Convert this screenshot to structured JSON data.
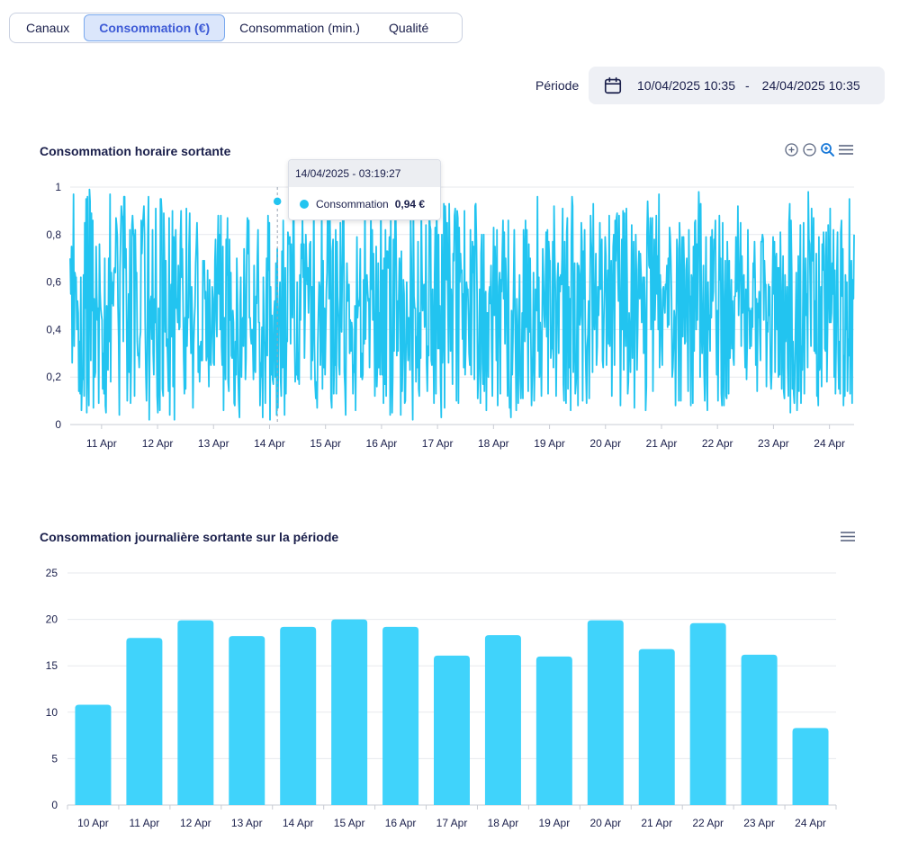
{
  "tabs": [
    {
      "label": "Canaux",
      "active": false
    },
    {
      "label": "Consommation (€)",
      "active": true
    },
    {
      "label": "Consommation (min.)",
      "active": false
    },
    {
      "label": "Qualité",
      "active": false
    }
  ],
  "period": {
    "label": "Période",
    "start": "10/04/2025 10:35",
    "separator": "-",
    "end": "24/04/2025 10:35",
    "icon": "calendar-icon"
  },
  "colors": {
    "accent": "#22c4f0",
    "bar": "#40d3fb",
    "text": "#1a1f4b"
  },
  "hourly": {
    "toolbox_icons": [
      "zoom-in-icon",
      "zoom-out-icon",
      "zoom-reset-icon",
      "menu-icon"
    ],
    "tooltip": {
      "title": "14/04/2025 - 03:19:27",
      "series": "Consommation",
      "value": "0,94 €"
    }
  },
  "daily": {
    "toolbox_icons": [
      "menu-icon"
    ]
  },
  "chart_data": [
    {
      "type": "line",
      "title": "Consommation horaire sortante",
      "series": [
        {
          "name": "Consommation"
        }
      ],
      "x_ticks": [
        "11 Apr",
        "12 Apr",
        "13 Apr",
        "14 Apr",
        "15 Apr",
        "16 Apr",
        "17 Apr",
        "18 Apr",
        "19 Apr",
        "20 Apr",
        "21 Apr",
        "22 Apr",
        "23 Apr",
        "24 Apr"
      ],
      "y_ticks": [
        "0",
        "0,2",
        "0,4",
        "0,6",
        "0,8",
        "1"
      ],
      "ylim": [
        0,
        1
      ],
      "xrange_days": [
        10.44,
        24.44
      ],
      "highlight": {
        "day": 14.14,
        "value": 0.94
      },
      "values": [
        0.7,
        0.55,
        0.75,
        0.26,
        0.54,
        0.97,
        0.33,
        0.64,
        0.62,
        0.62,
        0.4,
        0.52,
        0.47,
        0.14,
        0.35,
        0.13,
        0.62,
        0.06,
        0.2,
        0.19,
        0.63,
        0.12,
        0.85,
        0.49,
        0.95,
        0.05,
        0.96,
        0.28,
        0.08,
        0.99,
        0.94,
        0.27,
        0.89,
        0.48,
        0.86,
        0.07,
        0.53,
        0.2,
        0.22,
        0.75,
        0.55,
        0.44,
        0.49,
        0.09,
        0.76,
        0.56,
        0.49,
        0.46,
        0.44,
        0.15,
        0.3,
        0.13,
        0.7,
        0.08,
        0.05,
        0.5,
        0.28,
        0.23,
        0.7,
        0.35,
        0.97,
        0.18,
        0.64,
        0.51,
        0.6,
        0.5,
        0.65,
        0.66,
        0.64,
        0.87,
        0.84,
        0.79,
        0.5,
        0.37,
        0.04,
        0.64,
        0.8,
        0.92,
        0.88,
        0.87,
        0.35,
        0.96,
        0.96,
        0.66,
        0.74,
        0.43,
        0.1,
        0.34,
        0.55,
        0.22,
        0.82,
        0.09,
        0.29,
        0.84,
        0.88,
        0.81,
        0.79,
        0.12,
        0.82,
        0.62,
        0.64,
        0.35,
        0.29,
        0.3,
        0.24,
        0.36,
        0.39,
        0.86,
        0.72,
        0.83,
        0.87,
        0.92,
        0.8,
        0.43,
        0.21,
        0.1,
        0.3,
        0.8,
        0.96,
        0.02,
        0.36,
        0.52,
        0.54,
        0.36,
        0.82,
        0.3,
        0.21,
        0.53,
        0.43,
        0.91,
        0.4,
        0.12,
        0.05,
        0.49,
        0.25,
        0.06,
        0.95,
        0.95,
        0.89,
        0.15,
        0.12,
        0.89,
        0.72,
        0.39,
        0.69,
        0.33,
        0.36,
        0.26,
        0.14,
        0.87,
        0.04,
        0.45,
        0.59,
        0.37,
        0.9,
        0.16,
        0.79,
        0.02,
        0.71,
        0.82,
        0.49,
        0.53,
        0.43,
        0.67,
        0.4,
        0.41,
        0.78,
        0.9,
        0.62,
        0.74,
        0.51,
        0.28,
        0.13,
        0.45,
        0.15,
        0.91,
        0.33,
        0.47,
        0.45,
        0.75,
        0.89,
        0.45,
        0.3,
        0.58,
        0.43,
        0.07,
        0.34,
        0.43,
        0.5,
        0.68,
        0.75,
        0.85,
        0.72,
        0.22,
        0.33,
        0.18,
        0.32,
        0.35,
        0.27,
        0.27,
        0.69,
        0.64,
        0.69,
        0.53,
        0.56,
        0.27,
        0.29,
        0.65,
        0.32,
        0.16,
        0.61,
        0.28,
        0.25,
        0.37,
        0.58,
        0.53,
        0.26,
        0.25,
        0.69,
        0.78,
        0.44,
        0.37,
        0.71,
        0.88,
        0.55,
        0.8,
        0.4,
        0.88,
        0.33,
        0.25,
        0.75,
        0.06,
        0.45,
        0.39,
        0.19,
        0.78,
        0.63,
        0.87,
        0.18,
        0.14,
        0.78,
        0.44,
        0.64,
        0.29,
        0.28,
        0.48,
        0.43,
        0.09,
        0.08,
        0.35,
        0.21,
        0.7,
        0.53,
        0.21,
        0.1,
        0.03,
        0.5,
        0.62,
        0.2,
        0.42,
        0.45,
        0.33,
        0.74,
        0.57,
        0.19,
        0.28,
        0.72,
        0.87,
        0.72,
        0.86,
        0.45,
        0.45,
        0.37,
        0.34,
        0.4,
        0.35,
        0.19,
        0.67,
        0.24,
        0.22,
        0.54,
        0.51,
        0.71,
        0.82,
        0.43,
        0.43,
        0.08,
        0.26,
        0.2,
        0.41,
        0.03,
        0.62,
        0.35,
        0.34,
        0.09,
        0.51,
        0.7,
        0.29,
        0.88,
        0.65,
        0.85,
        0.02,
        0.58,
        0.21,
        0.46,
        0.19,
        0.17,
        0.46,
        0.52,
        0.2,
        0.68,
        0.04,
        0.74,
        0.07,
        0.42,
        0.5,
        0.6,
        0.19,
        0.12,
        0.73,
        0.24,
        0.86,
        0.33,
        0.04,
        0.66,
        0.13,
        0.36,
        0.35,
        0.81,
        0.78,
        0.76,
        0.79,
        0.34,
        0.76,
        0.51,
        0.45,
        0.88,
        0.87,
        0.37,
        0.18,
        0.24,
        0.21,
        0.6,
        0.19,
        0.3,
        0.17,
        0.63,
        0.44,
        0.76,
        0.7,
        0.87,
        0.62,
        0.76,
        0.28,
        0.5,
        0.8,
        0.68,
        0.59,
        0.66,
        0.47,
        0.6,
        0.76,
        0.77,
        0.19,
        0.58,
        0.27,
        0.44,
        0.95,
        0.34,
        0.17,
        0.11,
        0.18,
        0.07,
        0.34,
        0.47,
        0.6,
        0.58,
        0.25,
        0.39,
        0.93,
        0.15,
        0.69,
        0.24,
        0.49,
        0.21,
        0.38,
        0.57,
        0.64,
        0.96,
        0.91,
        0.53,
        0.91,
        0.73,
        0.11,
        0.07,
        0.73,
        0.78,
        0.13,
        0.27,
        0.25,
        0.82,
        0.13,
        0.77,
        0.54,
        0.45,
        0.25,
        0.21,
        0.85,
        0.48,
        0.39,
        0.68,
        0.97,
        0.91,
        0.22,
        0.16,
        0.04,
        0.47,
        0.68,
        0.52,
        0.53,
        0.59,
        0.3,
        0.44,
        0.31,
        0.43,
        0.4,
        0.13,
        0.25,
        0.22,
        0.5,
        0.06,
        0.42,
        0.79,
        0.45,
        0.52,
        0.5,
        0.54,
        0.74,
        0.2,
        0.3,
        0.19,
        0.21,
        0.61,
        0.34,
        0.94,
        0.36,
        0.58,
        0.63,
        0.57,
        0.52,
        0.53,
        0.24,
        0.53,
        0.89,
        0.57,
        0.82,
        0.44,
        0.72,
        0.45,
        0.12,
        0.31,
        0.75,
        0.16,
        0.26,
        0.68,
        0.24,
        0.47,
        0.21,
        0.95,
        0.45,
        0.21,
        0.65,
        0.09,
        0.7,
        0.17,
        0.82,
        0.12,
        0.73,
        0.73,
        0.66,
        0.66,
        0.79,
        0.04,
        0.89,
        0.24,
        0.05,
        0.2,
        0.78,
        0.31,
        0.76,
        0.97,
        0.78,
        0.29,
        0.52,
        0.31,
        0.54,
        0.7,
        0.66,
        0.04,
        0.73,
        0.14,
        0.28,
        0.61,
        0.55,
        0.09,
        0.1,
        0.36,
        0.6,
        0.38,
        0.27,
        0.45,
        0.37,
        0.23,
        0.88,
        0.69,
        0.3,
        0.02,
        0.94,
        0.54,
        0.49,
        0.49,
        0.18,
        0.37,
        0.24,
        0.77,
        0.15,
        0.12,
        0.47,
        0.28,
        0.91,
        0.64,
        0.48,
        0.57,
        0.59,
        0.41,
        0.44,
        0.84,
        0.26,
        0.14,
        0.33,
        0.29,
        0.9,
        0.84,
        0.82,
        0.27,
        0.25,
        0.57,
        0.35,
        0.09,
        0.63,
        0.83,
        0.13,
        0.93,
        0.73,
        0.32,
        0.8,
        0.32,
        0.5,
        0.18,
        0.03,
        0.8,
        0.26,
        0.41,
        0.93,
        0.07,
        0.92,
        0.81,
        0.61,
        0.85,
        0.55,
        0.26,
        0.93,
        0.63,
        0.31,
        0.57,
        0.44,
        0.17,
        0.72,
        0.69,
        0.88,
        0.91,
        0.77,
        0.1,
        0.9,
        0.87,
        0.09,
        0.83,
        0.6,
        0.72,
        0.64,
        0.65,
        0.36,
        0.55,
        0.24,
        0.9,
        0.21,
        0.34,
        0.6,
        0.57,
        0.57,
        0.46,
        0.3,
        0.25,
        0.82,
        0.21,
        0.54,
        0.77,
        0.64,
        0.75,
        0.19,
        0.92,
        0.93,
        0.77,
        0.55,
        0.11,
        0.21,
        0.34,
        0.57,
        0.09,
        0.72,
        0.8,
        0.26,
        0.17,
        0.8,
        0.14,
        0.51,
        0.56,
        0.06,
        0.47,
        0.47,
        0.2,
        0.55,
        0.58,
        0.51,
        0.67,
        0.32,
        0.12,
        0.59,
        0.83,
        0.46,
        0.75,
        0.61,
        0.27,
        0.82,
        0.08,
        0.35,
        0.58,
        0.64,
        0.13,
        0.61,
        0.56,
        0.72,
        0.86,
        0.53,
        0.81,
        0.34,
        0.7,
        0.6,
        0.35,
        0.12,
        0.86,
        0.23,
        0.07,
        0.11,
        0.03,
        0.48,
        0.21,
        0.35,
        0.6,
        0.82,
        0.52,
        0.29,
        0.06,
        0.53,
        0.34,
        0.09,
        0.43,
        0.63,
        0.2,
        0.11,
        0.23,
        0.47,
        0.11,
        0.82,
        0.71,
        0.35,
        0.86,
        0.41,
        0.82,
        0.47,
        0.14,
        0.76,
        0.39,
        0.7,
        0.39,
        0.08,
        0.19,
        0.29,
        0.64,
        0.1,
        0.26,
        0.57,
        0.49,
        0.48,
        0.96,
        0.31,
        0.62,
        0.2,
        0.43,
        0.33,
        0.12,
        0.44,
        0.74,
        0.63,
        0.46,
        0.41,
        0.59,
        0.81,
        0.37,
        0.82,
        0.13,
        0.77,
        0.69,
        0.69,
        0.28,
        0.32,
        0.32,
        0.77,
        0.24,
        0.92,
        0.7,
        0.57,
        0.12,
        0.37,
        0.61,
        0.68,
        0.3,
        0.62,
        0.56,
        0.63,
        0.59,
        0.7,
        0.91,
        0.17,
        0.1,
        0.77,
        0.45,
        0.09,
        0.81,
        0.87,
        0.15,
        0.58,
        0.24,
        0.53,
        0.06,
        0.77,
        0.96,
        0.92,
        0.22,
        0.38,
        0.68,
        0.13,
        0.17,
        0.24,
        0.68,
        0.08,
        0.67,
        0.63,
        0.42,
        0.46,
        0.85,
        0.77,
        0.1,
        0.73,
        0.53,
        0.82,
        0.39,
        0.23,
        0.09,
        0.33,
        0.38,
        0.52,
        0.11,
        0.55,
        0.88,
        0.77,
        0.7,
        0.22,
        0.93,
        0.46,
        0.4,
        0.56,
        0.72,
        0.25,
        0.33,
        0.58,
        0.46,
        0.57,
        0.85,
        0.57,
        0.66,
        0.78,
        0.27,
        0.24,
        0.45,
        0.58,
        0.79,
        0.71,
        0.25,
        0.52,
        0.65,
        0.34,
        0.88,
        0.33,
        0.54,
        0.69,
        0.12,
        0.45,
        0.75,
        0.8,
        0.25,
        0.86,
        0.69,
        0.87,
        0.89,
        0.67,
        0.52,
        0.88,
        0.53,
        0.08,
        0.41,
        0.78,
        0.4,
        0.9,
        0.23,
        0.89,
        0.45,
        0.33,
        0.91,
        0.62,
        0.13,
        0.18,
        0.47,
        0.39,
        0.22,
        0.46,
        0.84,
        0.28,
        0.59,
        0.77,
        0.07,
        0.42,
        0.8,
        0.65,
        0.23,
        0.41,
        0.65,
        0.73,
        0.53,
        0.72,
        0.63,
        0.43,
        0.53,
        0.62,
        0.3,
        0.62,
        0.49,
        0.06,
        0.16,
        0.8,
        0.94,
        0.82,
        0.67,
        0.66,
        0.87,
        0.4,
        0.79,
        0.87,
        0.14,
        0.55,
        0.78,
        0.44,
        0.59,
        0.88,
        0.55,
        0.71,
        0.4,
        0.97,
        0.24,
        0.63,
        0.52,
        0.33,
        0.25,
        0.57,
        0.58,
        0.51,
        0.47,
        0.59,
        0.57,
        0.67,
        0.41,
        0.7,
        0.42,
        0.83,
        0.79,
        0.69,
        0.52,
        0.2,
        0.24,
        0.33,
        0.48,
        0.44,
        0.08,
        0.37,
        0.78,
        0.74,
        0.44,
        0.1,
        0.85,
        0.74,
        0.1,
        0.5,
        0.79,
        0.37,
        0.79,
        0.67,
        0.34,
        0.35,
        0.65,
        0.7,
        0.4,
        0.14,
        0.82,
        0.52,
        0.54,
        0.08,
        0.63,
        0.6,
        0.09,
        0.75,
        0.31,
        0.85,
        0.86,
        0.4,
        0.76,
        0.44,
        0.77,
        0.98,
        0.86,
        0.2,
        0.93,
        0.43,
        0.3,
        0.42,
        0.67,
        0.23,
        0.1,
        0.54,
        0.79,
        0.17,
        0.06,
        0.6,
        0.4,
        0.46,
        0.31,
        0.79,
        0.45,
        0.82,
        0.52,
        0.56,
        0.78,
        0.74,
        0.86,
        0.45,
        0.21,
        0.48,
        0.1,
        0.45,
        0.88,
        0.61,
        0.7,
        0.13,
        0.08,
        0.85,
        0.26,
        0.08,
        0.54,
        0.69,
        0.12,
        0.11,
        0.77,
        0.58,
        0.13,
        0.69,
        0.28,
        0.41,
        0.61,
        0.32,
        0.52,
        0.28,
        0.25,
        0.54,
        0.54,
        0.79,
        0.56,
        0.6,
        0.92,
        0.46,
        0.6,
        0.67,
        0.85,
        0.33,
        0.71,
        0.47,
        0.59,
        0.63,
        0.37,
        0.24,
        0.57,
        0.19,
        0.35,
        0.82,
        0.48,
        0.49,
        0.32,
        0.48,
        0.33,
        0.49,
        0.41,
        0.68,
        0.62,
        0.77,
        0.6,
        0.25,
        0.53,
        0.14,
        0.51,
        0.45,
        0.56,
        0.38,
        0.27,
        0.77,
        0.77,
        0.8,
        0.78,
        0.44,
        0.69,
        0.58,
        0.59,
        0.16,
        0.43,
        0.39,
        0.59,
        0.46,
        0.58,
        0.22,
        0.15,
        0.22,
        0.6,
        0.79,
        0.55,
        0.77,
        0.22,
        0.69,
        0.72,
        0.4,
        0.66,
        0.2,
        0.66,
        0.21,
        0.81,
        0.58,
        0.15,
        0.38,
        0.71,
        0.14,
        0.11,
        0.63,
        0.35,
        0.44,
        0.58,
        0.24,
        0.12,
        0.85,
        0.93,
        0.05,
        0.86,
        0.65,
        0.15,
        0.35,
        0.13,
        0.09,
        0.28,
        0.47,
        0.64,
        0.06,
        0.21,
        0.71,
        0.14,
        0.52,
        0.84,
        0.09,
        0.33,
        0.23,
        0.55,
        0.85,
        0.13,
        0.52,
        0.7,
        0.46,
        0.55,
        0.24,
        0.98,
        0.78,
        0.76,
        0.57,
        0.33,
        0.91,
        0.69,
        0.69,
        0.87,
        0.31,
        0.52,
        0.3,
        0.72,
        0.12,
        0.18,
        0.08,
        0.79,
        0.23,
        0.25,
        0.58,
        0.16,
        0.76,
        0.65,
        0.81,
        0.71,
        0.32,
        0.31,
        0.81,
        0.18,
        0.39,
        0.84,
        0.6,
        0.43,
        0.91,
        0.43,
        0.47,
        0.68,
        0.55,
        0.82,
        0.2,
        0.65,
        0.13,
        0.34,
        0.64,
        0.81,
        0.3,
        0.15,
        0.35,
        0.13,
        0.81,
        0.86,
        0.54,
        0.74,
        0.08,
        0.29,
        0.12,
        0.63,
        0.4,
        0.6,
        0.14,
        0.36,
        0.29,
        0.95,
        0.13,
        0.57,
        0.69,
        0.09,
        0.61,
        0.53,
        0.8
      ]
    },
    {
      "type": "bar",
      "title": "Consommation journalière sortante sur la période",
      "categories": [
        "10 Apr",
        "11 Apr",
        "12 Apr",
        "13 Apr",
        "14 Apr",
        "15 Apr",
        "16 Apr",
        "17 Apr",
        "18 Apr",
        "19 Apr",
        "20 Apr",
        "21 Apr",
        "22 Apr",
        "23 Apr",
        "24 Apr"
      ],
      "values": [
        10.8,
        18,
        19.9,
        18.2,
        19.2,
        20,
        19.2,
        16.1,
        18.3,
        16,
        19.9,
        16.8,
        19.6,
        16.2,
        8.3
      ],
      "y_ticks": [
        "0",
        "5",
        "10",
        "15",
        "20",
        "25"
      ],
      "ylim": [
        0,
        25
      ]
    }
  ]
}
